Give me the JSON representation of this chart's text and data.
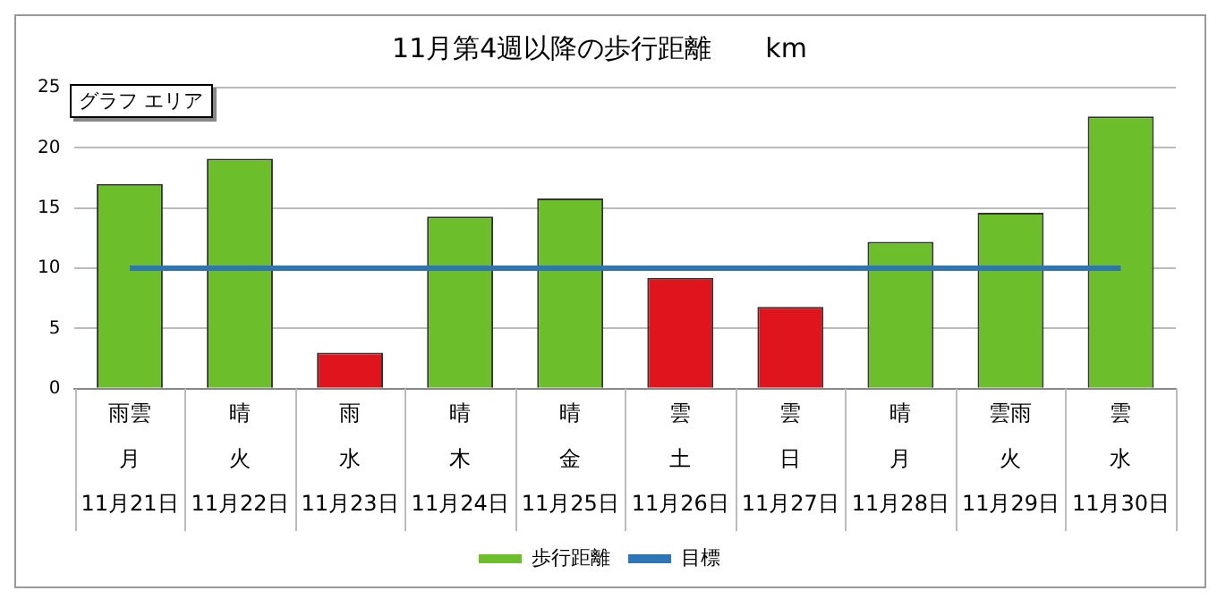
{
  "chart_data": {
    "type": "bar",
    "title": "11月第4週以降の歩行距離　　km",
    "categories": [
      "雨雲月11月21日",
      "晴火11月22日",
      "雨水11月23日",
      "晴木11月24日",
      "晴金11月25日",
      "雲土11月26日",
      "雲日11月27日",
      "晴月11月28日",
      "雲雨火11月29日",
      "雲水11月30日"
    ],
    "series": [
      {
        "name": "歩行距離",
        "color": "#6cbf2a",
        "colors": [
          "#6cbf2a",
          "#6cbf2a",
          "#e0141c",
          "#6cbf2a",
          "#6cbf2a",
          "#e0141c",
          "#e0141c",
          "#6cbf2a",
          "#6cbf2a",
          "#6cbf2a"
        ],
        "values": [
          17.0,
          19.1,
          3.0,
          14.3,
          15.8,
          9.2,
          6.8,
          12.2,
          14.6,
          22.6
        ]
      },
      {
        "name": "目標",
        "type": "line",
        "color": "#2e75b6",
        "values": [
          10,
          10,
          10,
          10,
          10,
          10,
          10,
          10,
          10,
          10
        ]
      }
    ],
    "ylim": [
      0,
      25
    ],
    "yticks": [
      0,
      5,
      10,
      15,
      20,
      25
    ],
    "grid": "y",
    "legend": "bottom",
    "marker": "none",
    "annotations": [
      "グラフ エリア"
    ]
  }
}
